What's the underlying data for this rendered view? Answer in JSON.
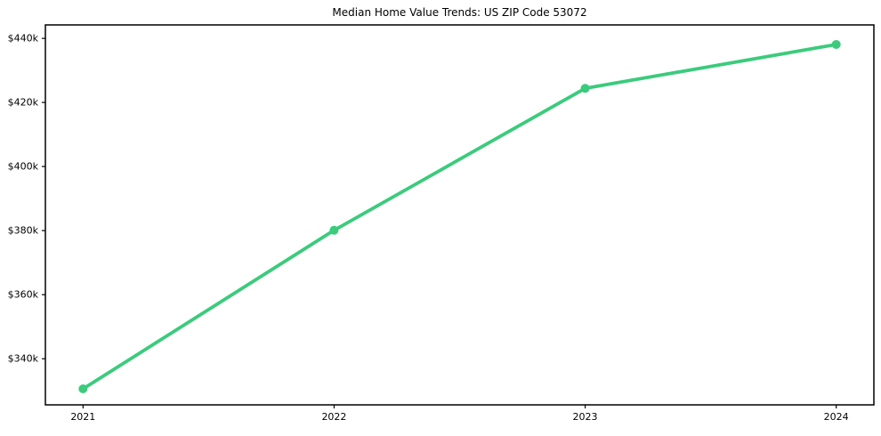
{
  "chart_data": {
    "type": "line",
    "title": "Median Home Value Trends: US ZIP Code 53072",
    "xlabel": "",
    "ylabel": "",
    "x": [
      2021,
      2022,
      2023,
      2024
    ],
    "series": [
      {
        "name": "median-home-value",
        "values": [
          330600,
          380100,
          424400,
          438100
        ],
        "color": "#3bcb7c",
        "marker": "circle",
        "line_width": 3.8,
        "marker_radius": 5
      }
    ],
    "x_tick_labels": [
      "2021",
      "2022",
      "2023",
      "2024"
    ],
    "y_ticks": [
      {
        "value": 340000,
        "label": "$340k"
      },
      {
        "value": 360000,
        "label": "$360k"
      },
      {
        "value": 380000,
        "label": "$380k"
      },
      {
        "value": 400000,
        "label": "$400k"
      },
      {
        "value": 420000,
        "label": "$420k"
      },
      {
        "value": 440000,
        "label": "$440k"
      }
    ],
    "xlim": [
      2020.85,
      2024.15
    ],
    "ylim": [
      325600,
      444200
    ],
    "grid": false,
    "legend_position": "none",
    "axis_color": "#000000",
    "text_color": "#000000",
    "background_color": "#ffffff"
  }
}
